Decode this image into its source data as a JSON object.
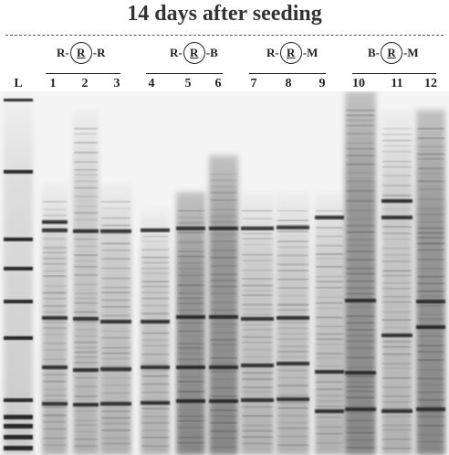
{
  "title": "14 days after seeding",
  "groups": [
    {
      "left": "R",
      "mid": "R",
      "right": "R"
    },
    {
      "left": "R",
      "mid": "R",
      "right": "B"
    },
    {
      "left": "R",
      "mid": "R",
      "right": "M"
    },
    {
      "left": "B",
      "mid": "R",
      "right": "M"
    }
  ],
  "lanes": [
    "L",
    "1",
    "2",
    "3",
    "4",
    "5",
    "6",
    "7",
    "8",
    "9",
    "10",
    "11",
    "12"
  ],
  "colors": {
    "gel_bg": "#f3f3f3",
    "band": "#1e1e1e",
    "ladder": "#2a2a2a"
  }
}
